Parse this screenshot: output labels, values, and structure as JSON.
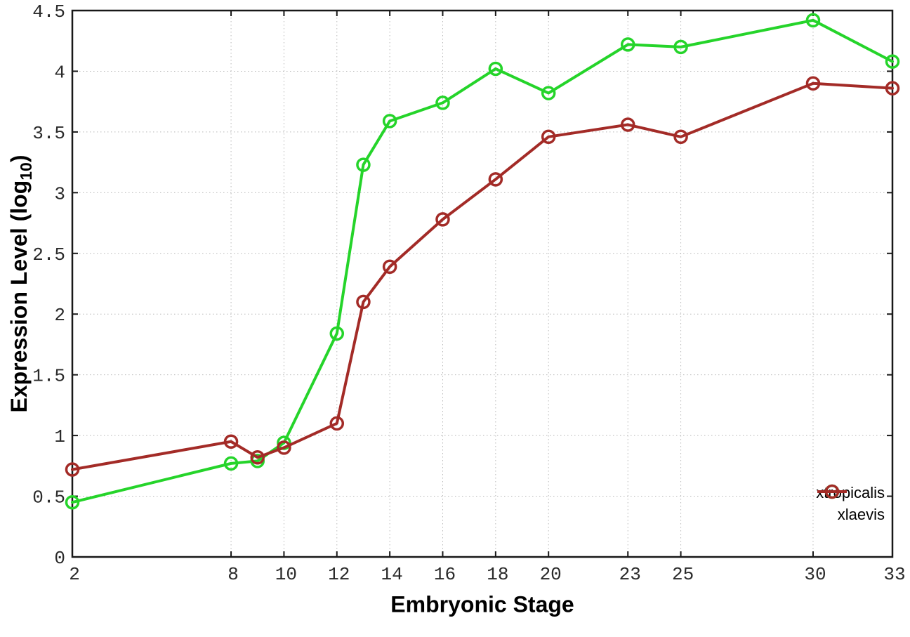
{
  "chart_data": {
    "type": "line",
    "title": "",
    "xlabel": "Embryonic Stage",
    "ylabel": "Expression Level (log10)",
    "ylabel_parts": {
      "pre": "Expression Level (log",
      "sub": "10",
      "post": ")"
    },
    "x": [
      2,
      8,
      9,
      10,
      12,
      13,
      14,
      16,
      18,
      20,
      23,
      25,
      30,
      33
    ],
    "series": [
      {
        "name": "xtropicalis",
        "color": "#25d42a",
        "values": [
          0.45,
          0.77,
          0.79,
          0.94,
          1.84,
          3.23,
          3.59,
          3.74,
          4.02,
          3.82,
          4.22,
          4.2,
          4.42,
          4.08
        ]
      },
      {
        "name": "xlaevis",
        "color": "#a32b27",
        "values": [
          0.72,
          0.95,
          0.82,
          0.9,
          1.1,
          2.1,
          2.39,
          2.78,
          3.11,
          3.46,
          3.56,
          3.46,
          3.9,
          3.86
        ]
      }
    ],
    "xlim": [
      2,
      33
    ],
    "ylim": [
      0,
      4.5
    ],
    "xticks": [
      2,
      8,
      10,
      12,
      14,
      16,
      18,
      20,
      23,
      25,
      30,
      33
    ],
    "yticks": [
      0,
      0.5,
      1,
      1.5,
      2,
      2.5,
      3,
      3.5,
      4,
      4.5
    ],
    "ytick_labels": [
      "0",
      "0.5",
      "1",
      "1.5",
      "2",
      "2.5",
      "3",
      "3.5",
      "4",
      "4.5"
    ],
    "grid": true,
    "legend_position": "inside-bottom-right",
    "marker": "open-circle",
    "colors": {
      "axis": "#181818",
      "grid": "#b8b8b8",
      "tick_text": "#2a2a2a"
    }
  }
}
